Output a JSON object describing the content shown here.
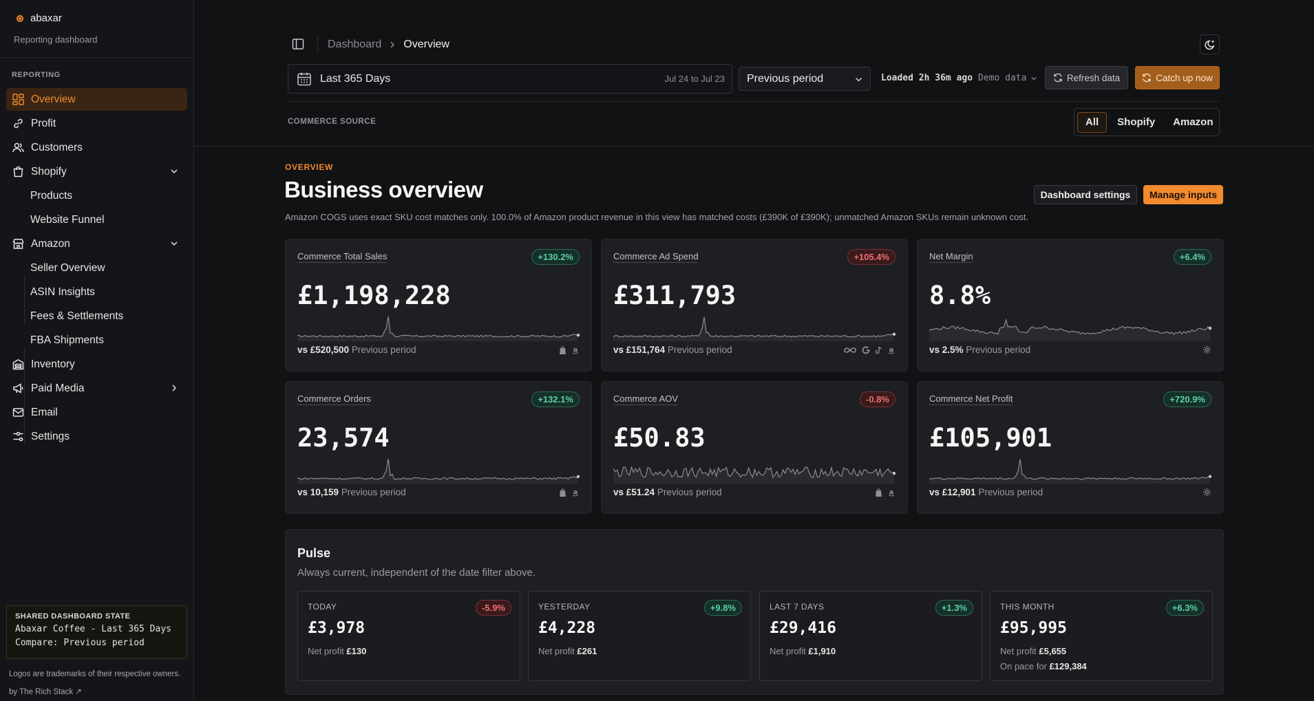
{
  "brand": {
    "name": "abaxar",
    "subtitle": "Reporting dashboard"
  },
  "sidebar": {
    "section": "REPORTING",
    "items": [
      {
        "label": "Overview",
        "icon": "grid-icon",
        "active": true
      },
      {
        "label": "Profit",
        "icon": "link-icon"
      },
      {
        "label": "Customers",
        "icon": "users-icon"
      },
      {
        "label": "Shopify",
        "icon": "bag-icon",
        "expanded": true
      },
      {
        "label": "Products",
        "sub": true
      },
      {
        "label": "Website Funnel",
        "sub": true
      },
      {
        "label": "Amazon",
        "icon": "store-icon",
        "expanded": true
      },
      {
        "label": "Seller Overview",
        "sub": true
      },
      {
        "label": "ASIN Insights",
        "sub": true
      },
      {
        "label": "Fees & Settlements",
        "sub": true
      },
      {
        "label": "FBA Shipments",
        "sub": true
      },
      {
        "label": "Inventory",
        "icon": "warehouse-icon"
      },
      {
        "label": "Paid Media",
        "icon": "megaphone-icon",
        "collapsed": true
      },
      {
        "label": "Email",
        "icon": "mail-icon"
      },
      {
        "label": "Settings",
        "icon": "sliders-icon"
      }
    ],
    "shared_state": {
      "title": "SHARED DASHBOARD STATE",
      "line1": "Abaxar Coffee - Last 365 Days",
      "line2": "Compare: Previous period"
    },
    "footer_trademark": "Logos are trademarks of their respective owners.",
    "footer_credit": "by The Rich Stack ↗"
  },
  "header": {
    "breadcrumb_root": "Dashboard",
    "breadcrumb_current": "Overview",
    "date_label": "Last 365 Days",
    "date_range": "Jul 24 to Jul 23",
    "compare": "Previous period",
    "loaded": "Loaded 2h 36m ago",
    "demo": "Demo data",
    "refresh": "Refresh data",
    "catch_up": "Catch up now",
    "source_label": "COMMERCE SOURCE",
    "sources": [
      "All",
      "Shopify",
      "Amazon"
    ],
    "selected_source": "All"
  },
  "overview": {
    "eyebrow": "OVERVIEW",
    "title": "Business overview",
    "note": "Amazon COGS uses exact SKU cost matches only. 100.0% of Amazon product revenue in this view has matched costs (£390K of £390K); unmatched Amazon SKUs remain unknown cost.",
    "settings_button": "Dashboard settings",
    "manage_button": "Manage inputs"
  },
  "kpis": [
    {
      "label": "Commerce Total Sales",
      "change": "+130.2%",
      "trend": "up",
      "value": "£1,198,228",
      "vs": "vs £520,500",
      "vs_label": "Previous period",
      "icons": [
        "shopify-icon",
        "amazon-icon"
      ],
      "spark": "spiky"
    },
    {
      "label": "Commerce Ad Spend",
      "change": "+105.4%",
      "trend": "down",
      "value": "£311,793",
      "vs": "vs £151,764",
      "vs_label": "Previous period",
      "icons": [
        "meta-icon",
        "google-icon",
        "tiktok-icon",
        "amazon-icon"
      ],
      "spark": "spiky"
    },
    {
      "label": "Net Margin",
      "change": "+6.4%",
      "trend": "up",
      "value": "8.8%",
      "vs": "vs 2.5%",
      "vs_label": "Previous period",
      "icons": [
        "gear-icon"
      ],
      "spark": "wavy"
    },
    {
      "label": "Commerce Orders",
      "change": "+132.1%",
      "trend": "up",
      "value": "23,574",
      "vs": "vs 10,159",
      "vs_label": "Previous period",
      "icons": [
        "shopify-icon",
        "amazon-icon"
      ],
      "spark": "spiky"
    },
    {
      "label": "Commerce AOV",
      "change": "-0.8%",
      "trend": "down",
      "value": "£50.83",
      "vs": "vs £51.24",
      "vs_label": "Previous period",
      "icons": [
        "shopify-icon",
        "amazon-icon"
      ],
      "spark": "noisy"
    },
    {
      "label": "Commerce Net Profit",
      "change": "+720.9%",
      "trend": "up",
      "value": "£105,901",
      "vs": "vs £12,901",
      "vs_label": "Previous period",
      "icons": [
        "gear-icon"
      ],
      "spark": "spiky"
    }
  ],
  "pulse": {
    "title": "Pulse",
    "subtitle": "Always current, independent of the date filter above.",
    "net_profit_label": "Net profit",
    "cards": [
      {
        "label": "TODAY",
        "change": "-5.9%",
        "trend": "down",
        "value": "£3,978",
        "net": "£130"
      },
      {
        "label": "YESTERDAY",
        "change": "+9.8%",
        "trend": "up",
        "value": "£4,228",
        "net": "£261"
      },
      {
        "label": "LAST 7 DAYS",
        "change": "+1.3%",
        "trend": "up",
        "value": "£29,416",
        "net": "£1,910"
      },
      {
        "label": "THIS MONTH",
        "change": "+6.3%",
        "trend": "up",
        "value": "£95,995",
        "net": "£5,655",
        "pace_label": "On pace for",
        "pace": "£129,384"
      }
    ]
  },
  "colors": {
    "accent": "#f28a2e",
    "up": "#5fd0a3",
    "down": "#f07070",
    "bg": "#111214",
    "card": "#1e1f22"
  }
}
